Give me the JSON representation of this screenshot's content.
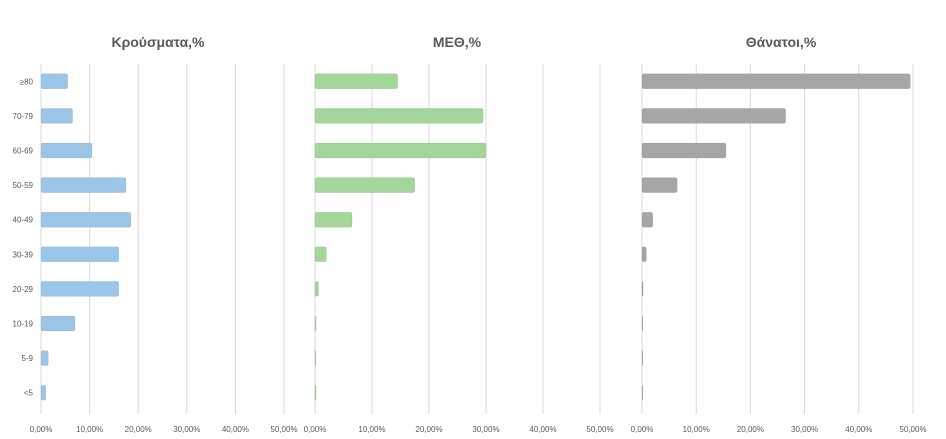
{
  "chart_data": [
    {
      "type": "bar",
      "orientation": "horizontal",
      "title": "Κρούσματα,%",
      "categories": [
        "≥80",
        "70-79",
        "60-69",
        "50-59",
        "40-49",
        "30-39",
        "20-29",
        "10-19",
        "5-9",
        "<5"
      ],
      "values": [
        5.5,
        6.5,
        10.5,
        17.5,
        18.5,
        16.0,
        16.0,
        7.0,
        1.5,
        1.0
      ],
      "xlim": [
        0,
        50
      ],
      "xticks": [
        "0,00%",
        "10,00%",
        "20,00%",
        "30,00%",
        "40,00%",
        "50,00%"
      ],
      "grid": true,
      "color": "#9cc6e8"
    },
    {
      "type": "bar",
      "orientation": "horizontal",
      "title": "ΜΕΘ,%",
      "categories": [
        "≥80",
        "70-79",
        "60-69",
        "50-59",
        "40-49",
        "30-39",
        "20-29",
        "10-19",
        "5-9",
        "<5"
      ],
      "values": [
        14.5,
        29.5,
        30.0,
        17.5,
        6.5,
        2.0,
        0.6,
        0.2,
        0.1,
        0.2
      ],
      "xlim": [
        0,
        50
      ],
      "xticks": [
        "0,00%",
        "10,00%",
        "20,00%",
        "30,00%",
        "40,00%",
        "50,00%"
      ],
      "grid": true,
      "color": "#a3d79a"
    },
    {
      "type": "bar",
      "orientation": "horizontal",
      "title": "Θάνατοι,%",
      "categories": [
        "≥80",
        "70-79",
        "60-69",
        "50-59",
        "40-49",
        "30-39",
        "20-29",
        "10-19",
        "5-9",
        "<5"
      ],
      "values": [
        49.5,
        26.5,
        15.5,
        6.5,
        2.0,
        0.8,
        0.2,
        0,
        0,
        0
      ],
      "xlim": [
        0,
        50
      ],
      "xticks": [
        "0,00%",
        "10,00%",
        "20,00%",
        "30,00%",
        "40,00%",
        "50,00%"
      ],
      "grid": true,
      "color": "#a6a6a6"
    }
  ]
}
